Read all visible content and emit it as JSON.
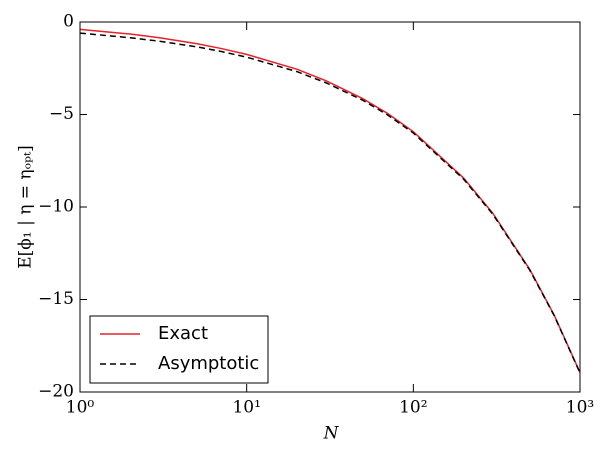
{
  "chart_data": {
    "type": "line",
    "xlabel": "N",
    "ylabel": "E[ϕ₁ | η = ηₒₚₜ]",
    "x": [
      1,
      2,
      3,
      5,
      7,
      10,
      20,
      30,
      50,
      70,
      100,
      200,
      300,
      500,
      700,
      1000
    ],
    "series": [
      {
        "name": "Exact",
        "color": "#e8212b",
        "dash": "solid",
        "values": [
          -0.4,
          -0.65,
          -0.85,
          -1.17,
          -1.43,
          -1.75,
          -2.55,
          -3.18,
          -4.15,
          -4.94,
          -5.93,
          -8.43,
          -10.34,
          -13.38,
          -15.84,
          -18.95
        ]
      },
      {
        "name": "Asymptotic",
        "color": "#000000",
        "dash": "dashed",
        "values": [
          -0.6,
          -0.85,
          -1.04,
          -1.34,
          -1.59,
          -1.9,
          -2.68,
          -3.29,
          -4.24,
          -5.02,
          -6.0,
          -8.49,
          -10.39,
          -13.42,
          -15.87,
          -18.97
        ]
      }
    ],
    "xscale": "log",
    "xlim": [
      1,
      1000
    ],
    "xticks": [
      {
        "value": 1,
        "label": "10⁰"
      },
      {
        "value": 10,
        "label": "10¹"
      },
      {
        "value": 100,
        "label": "10²"
      },
      {
        "value": 1000,
        "label": "10³"
      }
    ],
    "ylim": [
      -20,
      0
    ],
    "yticks": [
      {
        "value": -20,
        "label": "−20"
      },
      {
        "value": -15,
        "label": "−15"
      },
      {
        "value": -10,
        "label": "−10"
      },
      {
        "value": -5,
        "label": "−5"
      },
      0
    ],
    "legend": "lower left",
    "grid": false
  }
}
